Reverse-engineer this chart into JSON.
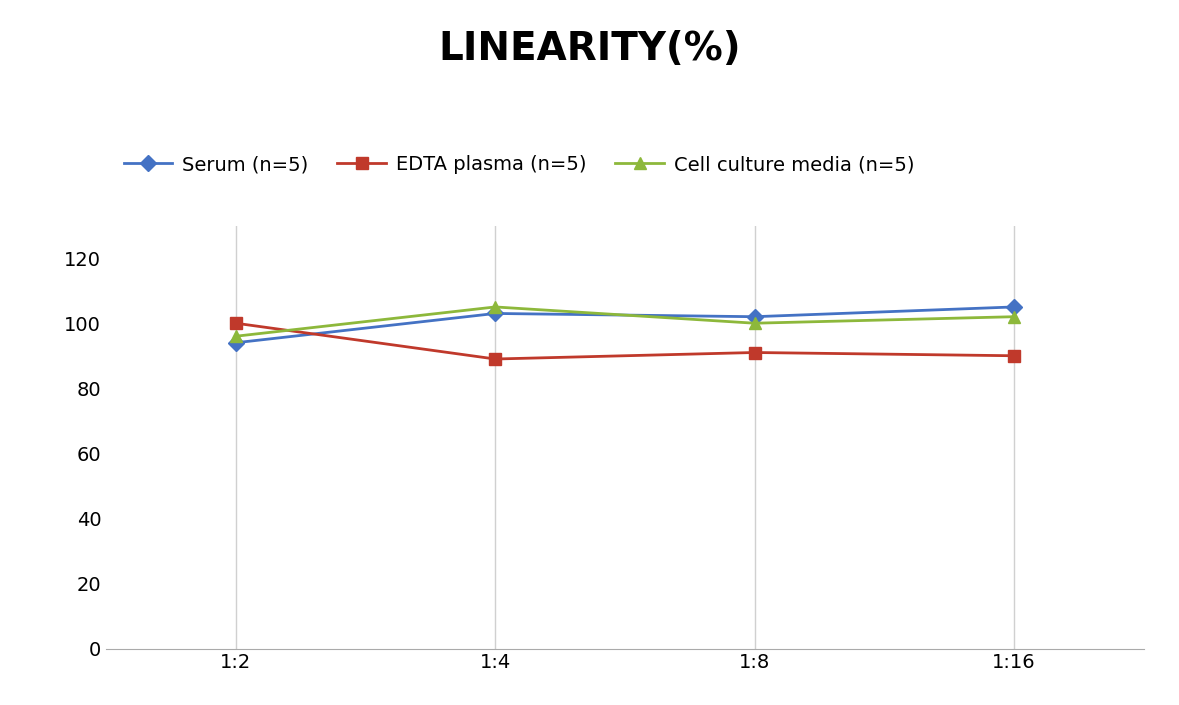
{
  "title": "LINEARITY(%)",
  "title_fontsize": 28,
  "title_fontweight": "bold",
  "x_labels": [
    "1:2",
    "1:4",
    "1:8",
    "1:16"
  ],
  "x_positions": [
    0,
    1,
    2,
    3
  ],
  "series": [
    {
      "label": "Serum (n=5)",
      "values": [
        94,
        103,
        102,
        105
      ],
      "color": "#4472C4",
      "marker": "D",
      "markersize": 8,
      "linewidth": 2
    },
    {
      "label": "EDTA plasma (n=5)",
      "values": [
        100,
        89,
        91,
        90
      ],
      "color": "#C0392B",
      "marker": "s",
      "markersize": 8,
      "linewidth": 2
    },
    {
      "label": "Cell culture media (n=5)",
      "values": [
        96,
        105,
        100,
        102
      ],
      "color": "#8DB83B",
      "marker": "^",
      "markersize": 9,
      "linewidth": 2
    }
  ],
  "ylim": [
    0,
    130
  ],
  "yticks": [
    0,
    20,
    40,
    60,
    80,
    100,
    120
  ],
  "grid_color": "#D0D0D0",
  "background_color": "#FFFFFF",
  "legend_fontsize": 14,
  "tick_fontsize": 14
}
